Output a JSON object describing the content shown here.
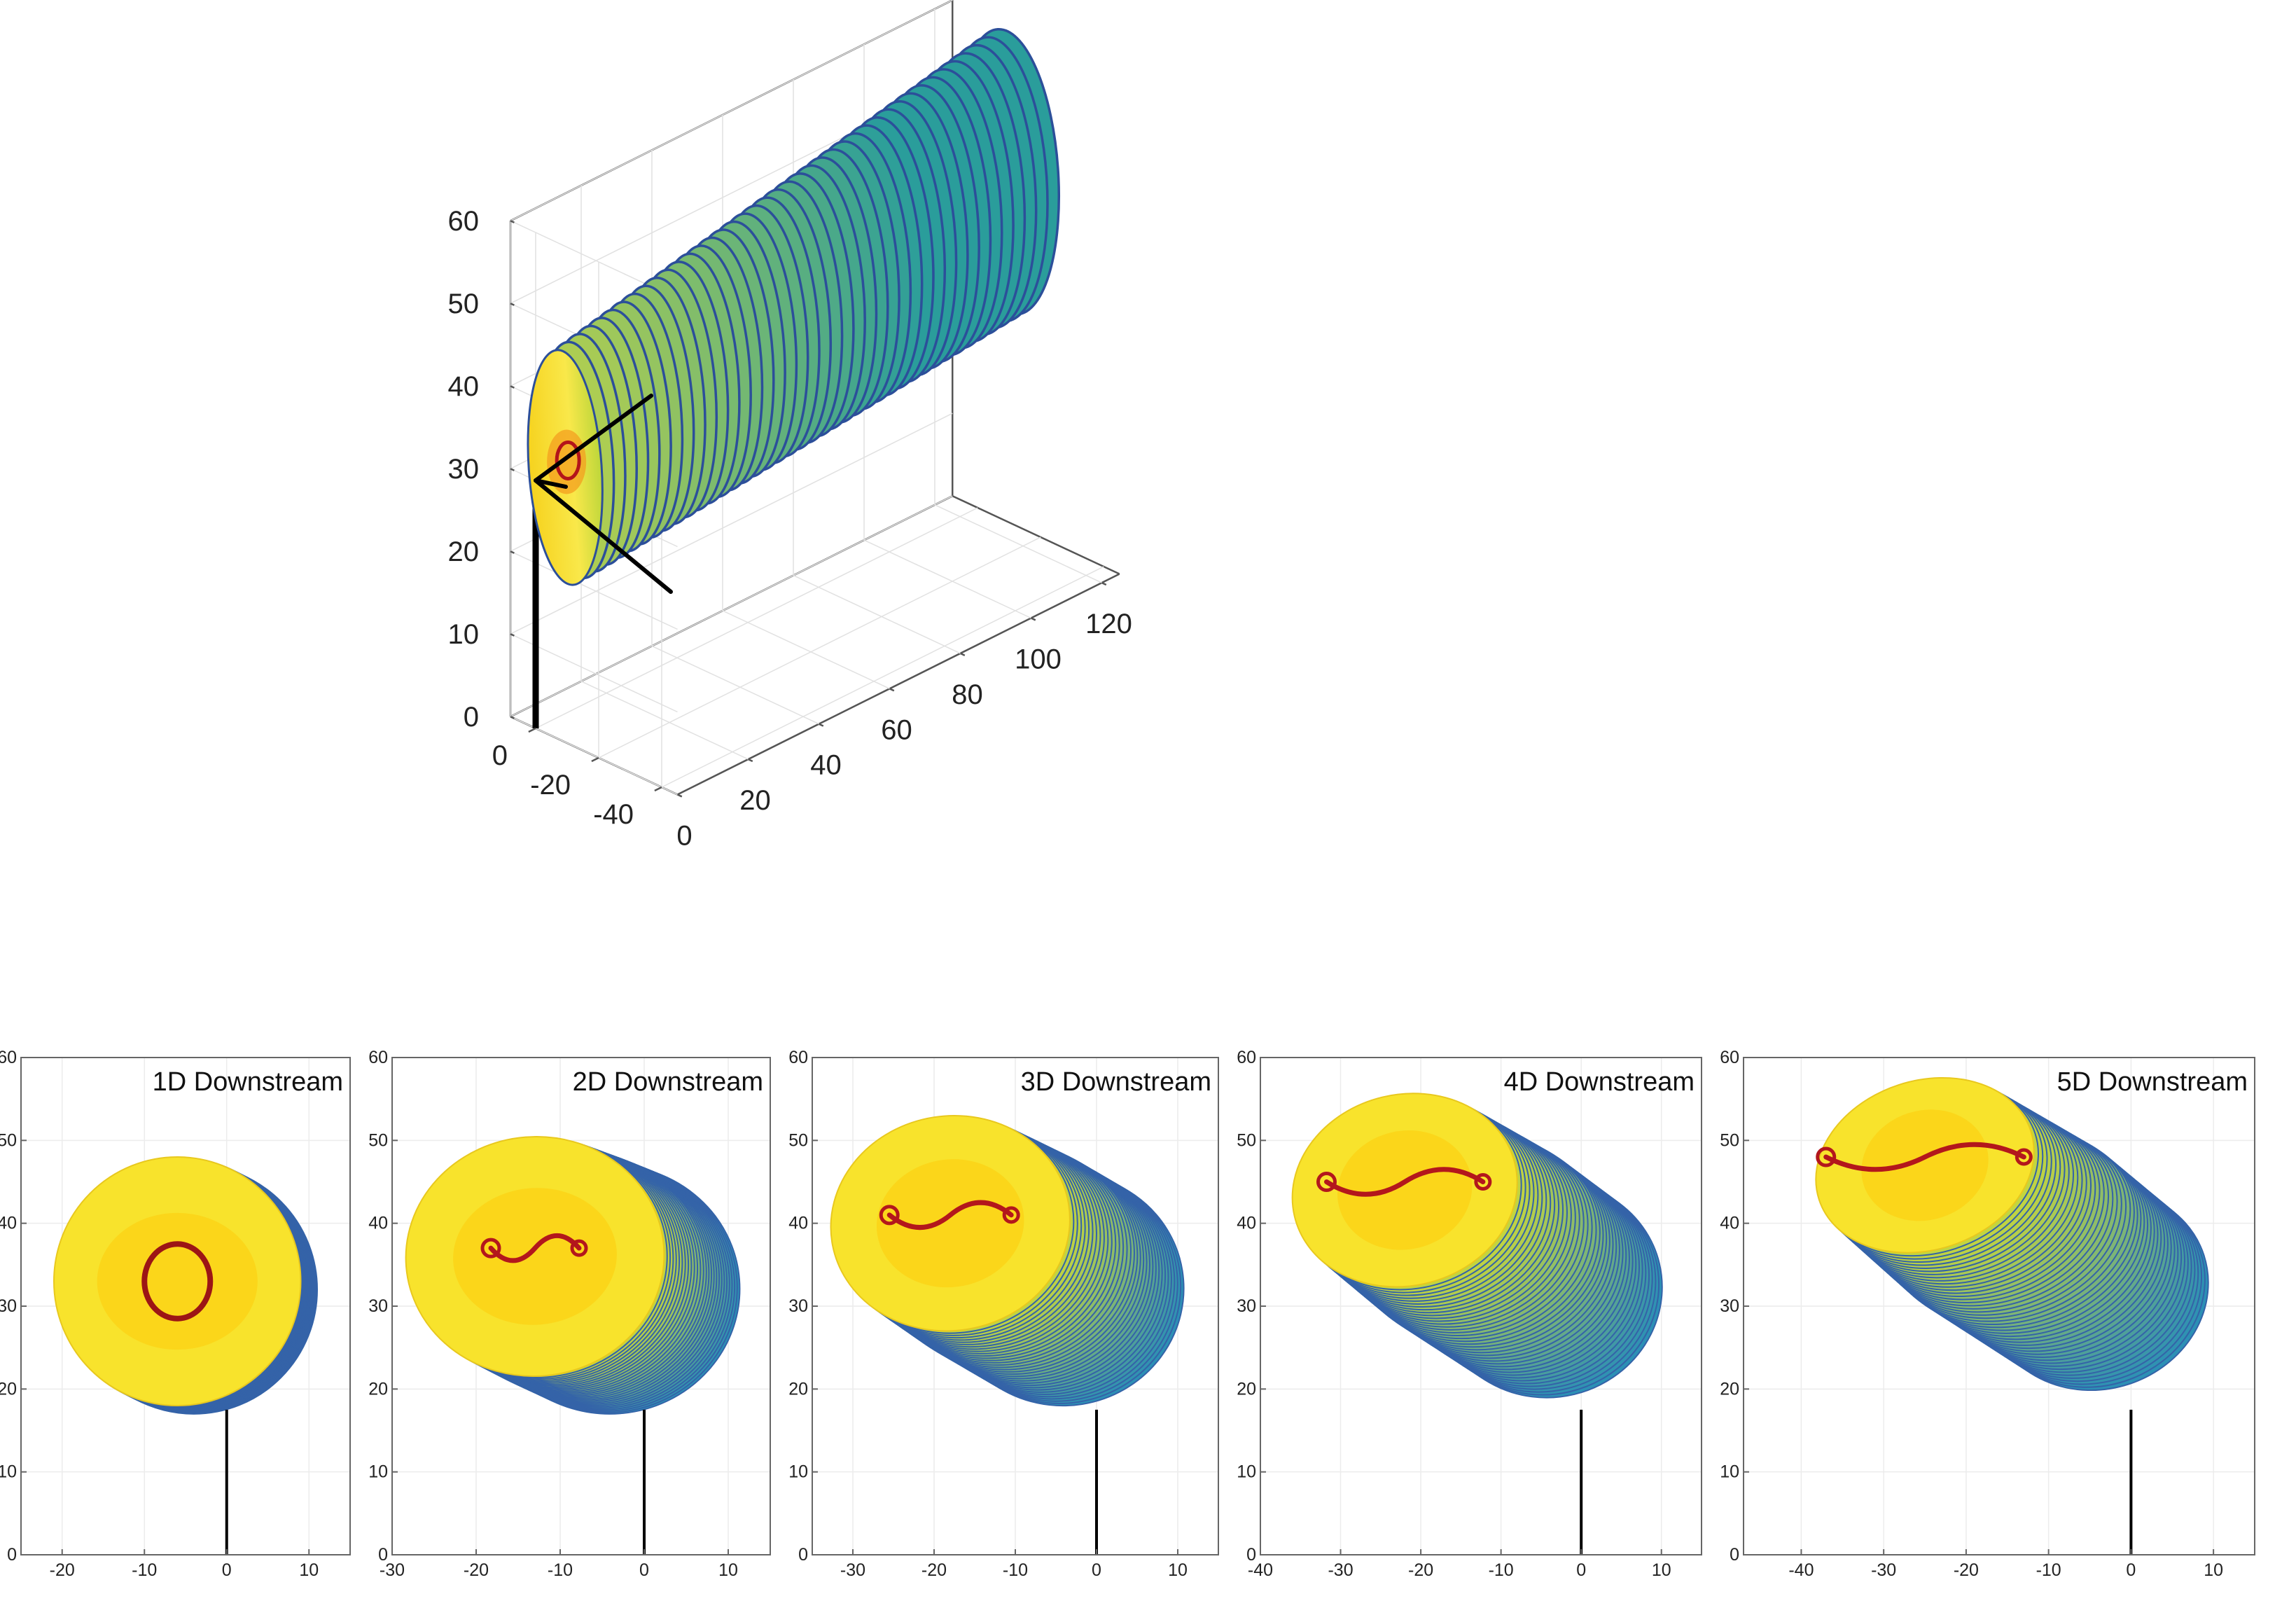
{
  "chart_data": [
    {
      "type": "surface3d",
      "title": "",
      "xlabel": "",
      "ylabel": "",
      "zlabel": "",
      "x_ticks": [
        0,
        20,
        40,
        60,
        80,
        100,
        120
      ],
      "y_ticks": [
        0,
        -20,
        -40
      ],
      "z_ticks": [
        0,
        10,
        20,
        30,
        40,
        50,
        60
      ],
      "xlim": [
        0,
        125
      ],
      "ylim": [
        -45,
        8
      ],
      "zlim": [
        0,
        60
      ],
      "tower_height": 27,
      "hub_height": 30,
      "n_wake_slices": 40,
      "wake_color_low": "#2a9d9b",
      "wake_color_high": "#f9e928"
    },
    {
      "type": "contour",
      "title": "1D Downstream",
      "xlim": [
        -25,
        15
      ],
      "ylim": [
        0,
        60
      ],
      "x_ticks": [
        -20,
        -10,
        0,
        10
      ],
      "y_ticks": [
        0,
        10,
        20,
        30,
        40,
        50,
        60
      ],
      "wake_center": [
        -6,
        33
      ],
      "wake_radius": 15,
      "deflection": 0.0,
      "layers": 20
    },
    {
      "type": "contour",
      "title": "2D Downstream",
      "xlim": [
        -30,
        15
      ],
      "ylim": [
        0,
        60
      ],
      "x_ticks": [
        -30,
        -20,
        -10,
        0,
        10
      ],
      "y_ticks": [
        0,
        10,
        20,
        30,
        40,
        50,
        60
      ],
      "wake_center": [
        -13,
        36
      ],
      "wake_radius": 15,
      "deflection": 0.25,
      "layers": 28
    },
    {
      "type": "contour",
      "title": "3D Downstream",
      "xlim": [
        -35,
        15
      ],
      "ylim": [
        0,
        60
      ],
      "x_ticks": [
        -30,
        -20,
        -10,
        0,
        10
      ],
      "y_ticks": [
        0,
        10,
        20,
        30,
        40,
        50,
        60
      ],
      "wake_center": [
        -18,
        40
      ],
      "wake_radius": 14,
      "deflection": 0.5,
      "layers": 34
    },
    {
      "type": "contour",
      "title": "4D Downstream",
      "xlim": [
        -40,
        15
      ],
      "ylim": [
        0,
        60
      ],
      "x_ticks": [
        -40,
        -30,
        -20,
        -10,
        0,
        10
      ],
      "y_ticks": [
        0,
        10,
        20,
        30,
        40,
        50,
        60
      ],
      "wake_center": [
        -22,
        44
      ],
      "wake_radius": 13,
      "deflection": 0.75,
      "layers": 40
    },
    {
      "type": "contour",
      "title": "5D Downstream",
      "xlim": [
        -47,
        15
      ],
      "ylim": [
        0,
        60
      ],
      "x_ticks": [
        -40,
        -30,
        -20,
        -10,
        0,
        10
      ],
      "y_ticks": [
        0,
        10,
        20,
        30,
        40,
        50,
        60
      ],
      "wake_center": [
        -25,
        47
      ],
      "wake_radius": 12,
      "deflection": 1.0,
      "layers": 46
    }
  ]
}
